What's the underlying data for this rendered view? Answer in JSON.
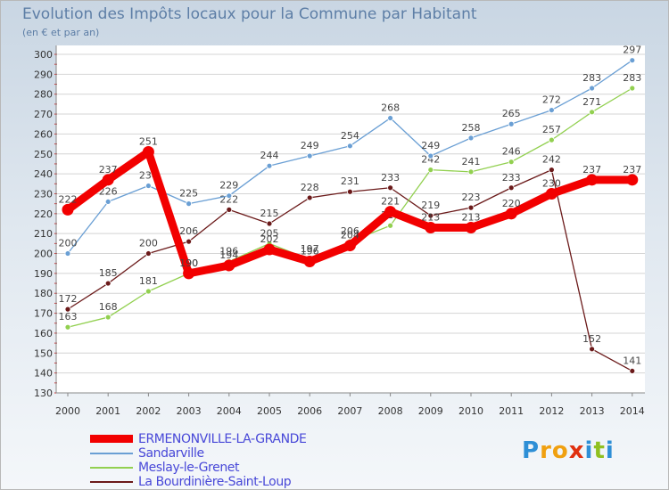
{
  "header": {
    "title": "Evolution des Impôts locaux pour la Commune par Habitant",
    "subtitle": "(en € et par an)"
  },
  "chart_data": {
    "type": "line",
    "title": "Evolution des Impôts locaux pour la Commune par Habitant",
    "subtitle": "(en € et par an)",
    "x": [
      "2000",
      "2001",
      "2002",
      "2003",
      "2004",
      "2005",
      "2006",
      "2007",
      "2008",
      "2009",
      "2010",
      "2011",
      "2012",
      "2013",
      "2014"
    ],
    "yticks": [
      130,
      140,
      150,
      160,
      170,
      180,
      190,
      200,
      210,
      220,
      230,
      240,
      250,
      260,
      270,
      280,
      290,
      300
    ],
    "ylim": [
      130,
      300
    ],
    "grid": "horizontal",
    "legend_position": "bottom-left",
    "series": [
      {
        "name": "La Bourdinière-Saint-Loup",
        "color": "#6b1a1a",
        "style": "thin",
        "values": [
          172,
          185,
          200,
          206,
          222,
          215,
          228,
          231,
          233,
          219,
          223,
          233,
          242,
          152,
          141
        ]
      },
      {
        "name": "Meslay-le-Grenet",
        "color": "#92d050",
        "style": "thin",
        "values": [
          163,
          168,
          181,
          190,
          196,
          205,
          197,
          206,
          214,
          242,
          241,
          246,
          257,
          271,
          283
        ]
      },
      {
        "name": "Sandarville",
        "color": "#6a9fd4",
        "style": "thin",
        "values": [
          200,
          226,
          234,
          225,
          229,
          244,
          249,
          254,
          268,
          249,
          258,
          265,
          272,
          283,
          297
        ]
      },
      {
        "name": "ERMENONVILLE-LA-GRANDE",
        "color": "#f20000",
        "style": "thick",
        "values": [
          222,
          237,
          251,
          190,
          194,
          202,
          196,
          204,
          221,
          213,
          213,
          220,
          230,
          237,
          237
        ]
      }
    ]
  },
  "legend": {
    "items": [
      {
        "label": "ERMENONVILLE-LA-GRANDE",
        "color": "#f20000"
      },
      {
        "label": "Sandarville",
        "color": "#6a9fd4"
      },
      {
        "label": "Meslay-le-Grenet",
        "color": "#92d050"
      },
      {
        "label": "La Bourdinière-Saint-Loup",
        "color": "#6b1a1a"
      }
    ]
  },
  "logo": {
    "letters": [
      "P",
      "r",
      "o",
      "x",
      "i",
      "t",
      "i"
    ],
    "colors": [
      "#2e8fd6",
      "#f0a010",
      "#f0a010",
      "#e03010",
      "#2e8fd6",
      "#90c020",
      "#2e8fd6"
    ]
  }
}
